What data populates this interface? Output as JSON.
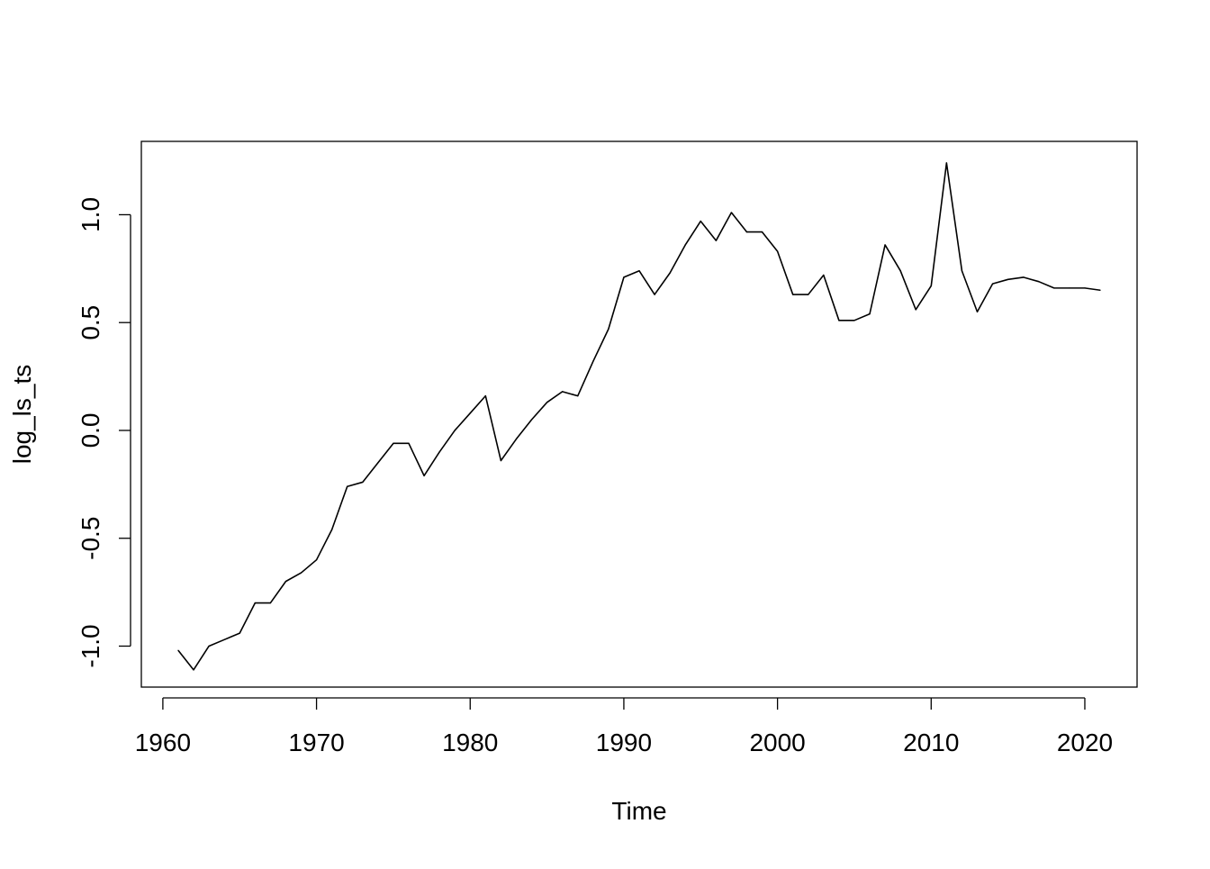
{
  "chart_data": {
    "type": "line",
    "title": "",
    "xlabel": "Time",
    "ylabel": "log_ls_ts",
    "xlim": [
      1958.6,
      2023.4
    ],
    "ylim": [
      -1.19,
      1.34
    ],
    "xticks": [
      1960,
      1970,
      1980,
      1990,
      2000,
      2010,
      2020
    ],
    "xtick_labels": [
      "1960",
      "1970",
      "1980",
      "1990",
      "2000",
      "2010",
      "2020"
    ],
    "yticks": [
      -1.0,
      -0.5,
      0.0,
      0.5,
      1.0
    ],
    "ytick_labels": [
      "-1.0",
      "-0.5",
      "0.0",
      "0.5",
      "1.0"
    ],
    "grid": false,
    "colors": {
      "line": "#000000",
      "axis": "#000000",
      "background": "#ffffff"
    },
    "series": [
      {
        "x": [
          1961,
          1962,
          1963,
          1964,
          1965,
          1966,
          1967,
          1968,
          1969,
          1970,
          1971,
          1972,
          1973,
          1974,
          1975,
          1976,
          1977,
          1978,
          1979,
          1980,
          1981,
          1982,
          1983,
          1984,
          1985,
          1986,
          1987,
          1988,
          1989,
          1990,
          1991,
          1992,
          1993,
          1994,
          1995,
          1996,
          1997,
          1998,
          1999,
          2000,
          2001,
          2002,
          2003,
          2004,
          2005,
          2006,
          2007,
          2008,
          2009,
          2010,
          2011,
          2012,
          2013,
          2014,
          2015,
          2016,
          2017,
          2018,
          2019,
          2020,
          2021
        ],
        "values": [
          -1.02,
          -1.11,
          -1.0,
          -0.97,
          -0.94,
          -0.8,
          -0.8,
          -0.7,
          -0.66,
          -0.6,
          -0.46,
          -0.26,
          -0.24,
          -0.15,
          -0.06,
          -0.06,
          -0.21,
          -0.1,
          0.0,
          0.08,
          0.16,
          -0.14,
          -0.04,
          0.05,
          0.13,
          0.18,
          0.16,
          0.32,
          0.47,
          0.71,
          0.74,
          0.63,
          0.73,
          0.86,
          0.97,
          0.88,
          1.01,
          0.92,
          0.92,
          0.83,
          0.63,
          0.63,
          0.72,
          0.51,
          0.51,
          0.54,
          0.86,
          0.74,
          0.56,
          0.67,
          1.24,
          0.74,
          0.55,
          0.68,
          0.7,
          0.71,
          0.69,
          0.66,
          0.66,
          0.66,
          0.65
        ]
      }
    ]
  }
}
